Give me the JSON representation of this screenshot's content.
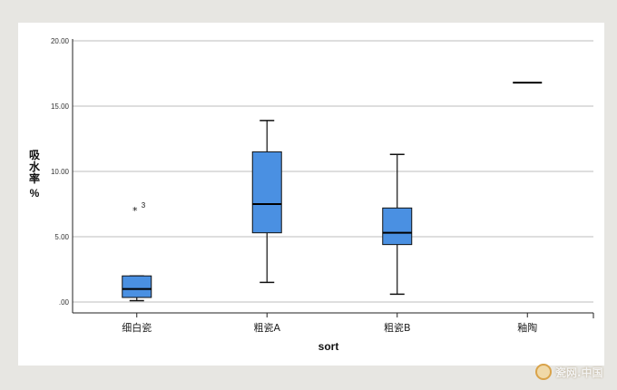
{
  "chart_data": {
    "type": "box",
    "xlabel": "sort",
    "ylabel": "吸水率 %",
    "ylabel_chars": [
      "吸",
      "水",
      "率"
    ],
    "ylabel_unit": "%",
    "ylim": [
      0,
      20
    ],
    "yticks": [
      ".00",
      "5.00",
      "10.00",
      "15.00",
      "20.00"
    ],
    "ytick_values": [
      0,
      5,
      10,
      15,
      20
    ],
    "grid": true,
    "categories": [
      "细白瓷",
      "粗瓷A",
      "粗瓷B",
      "釉陶"
    ],
    "boxes": [
      {
        "category": "细白瓷",
        "whisker_low": 0.1,
        "q1": 0.35,
        "median": 1.0,
        "q3": 2.0,
        "whisker_high": 2.0,
        "outliers": [
          {
            "value": 7.1,
            "label": "3",
            "marker": "*"
          }
        ]
      },
      {
        "category": "粗瓷A",
        "whisker_low": 1.5,
        "q1": 5.3,
        "median": 7.5,
        "q3": 11.5,
        "whisker_high": 13.9,
        "outliers": []
      },
      {
        "category": "粗瓷B",
        "whisker_low": 0.6,
        "q1": 4.4,
        "median": 5.3,
        "q3": 7.2,
        "whisker_high": 11.3,
        "outliers": []
      },
      {
        "category": "釉陶",
        "whisker_low": 16.8,
        "q1": 16.8,
        "median": 16.8,
        "q3": 16.8,
        "whisker_high": 16.8,
        "outliers": []
      }
    ],
    "box_color": "#4a90e2",
    "grid_color": "#bdbdbd"
  },
  "watermark": {
    "text": "瓷网.中国"
  }
}
